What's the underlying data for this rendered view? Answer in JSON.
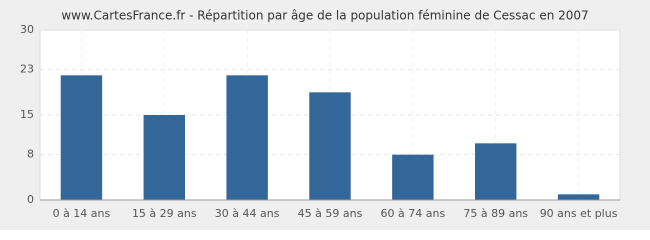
{
  "chart_data": {
    "type": "bar",
    "title": "www.CartesFrance.fr - Répartition par âge de la population féminine de Cessac en 2007",
    "categories": [
      "0 à 14 ans",
      "15 à 29 ans",
      "30 à 44 ans",
      "45 à 59 ans",
      "60 à 74 ans",
      "75 à 89 ans",
      "90 ans et plus"
    ],
    "values": [
      22,
      15,
      22,
      19,
      8,
      10,
      1
    ],
    "color": "#336699",
    "ylim": [
      0,
      30
    ],
    "yticks": [
      0,
      8,
      15,
      23,
      30
    ],
    "grid": true
  }
}
